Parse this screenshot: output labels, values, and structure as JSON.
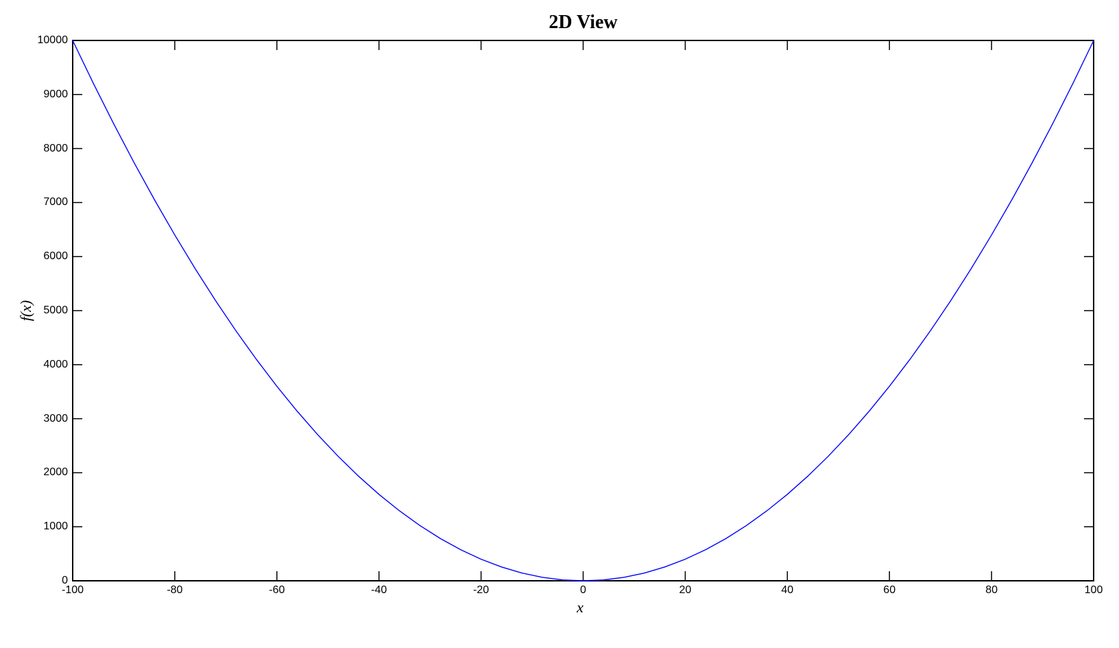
{
  "figure": {
    "background": "#ffffff"
  },
  "chart_data": {
    "type": "line",
    "title": "2D View",
    "xlabel": "x",
    "ylabel": "f(x)",
    "xlim": [
      -100,
      100
    ],
    "ylim": [
      0,
      10000
    ],
    "x_ticks": [
      -100,
      -80,
      -60,
      -40,
      -20,
      0,
      20,
      40,
      60,
      80,
      100
    ],
    "y_ticks": [
      0,
      1000,
      2000,
      3000,
      4000,
      5000,
      6000,
      7000,
      8000,
      9000,
      10000
    ],
    "grid": false,
    "box": true,
    "legend": "none",
    "axis_color": "#000000",
    "line_color": "#0000ff",
    "series": [
      {
        "x": [
          -100,
          -96,
          -92,
          -88,
          -84,
          -80,
          -76,
          -72,
          -68,
          -64,
          -60,
          -56,
          -52,
          -48,
          -44,
          -40,
          -36,
          -32,
          -28,
          -24,
          -20,
          -16,
          -12,
          -8,
          -4,
          0,
          4,
          8,
          12,
          16,
          20,
          24,
          28,
          32,
          36,
          40,
          44,
          48,
          52,
          56,
          60,
          64,
          68,
          72,
          76,
          80,
          84,
          88,
          92,
          96,
          100
        ],
        "y": [
          10000,
          9216,
          8464,
          7744,
          7056,
          6400,
          5776,
          5184,
          4624,
          4096,
          3600,
          3136,
          2704,
          2304,
          1936,
          1600,
          1296,
          1024,
          784,
          576,
          400,
          256,
          144,
          64,
          16,
          0,
          16,
          64,
          144,
          256,
          400,
          576,
          784,
          1024,
          1296,
          1600,
          1936,
          2304,
          2704,
          3136,
          3600,
          4096,
          4624,
          5184,
          5776,
          6400,
          7056,
          7744,
          8464,
          9216,
          10000
        ]
      }
    ]
  }
}
